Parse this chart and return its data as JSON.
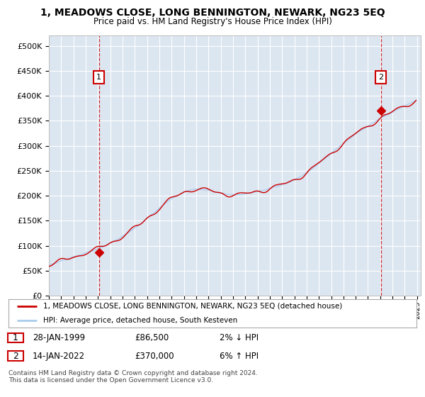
{
  "title": "1, MEADOWS CLOSE, LONG BENNINGTON, NEWARK, NG23 5EQ",
  "subtitle": "Price paid vs. HM Land Registry's House Price Index (HPI)",
  "ylim": [
    0,
    520000
  ],
  "yticks": [
    0,
    50000,
    100000,
    150000,
    200000,
    250000,
    300000,
    350000,
    400000,
    450000,
    500000
  ],
  "ytick_labels": [
    "£0",
    "£50K",
    "£100K",
    "£150K",
    "£200K",
    "£250K",
    "£300K",
    "£350K",
    "£400K",
    "£450K",
    "£500K"
  ],
  "bg_color": "#dce6f1",
  "grid_color": "#ffffff",
  "line_color_hpi": "#aaccee",
  "line_color_price": "#cc0000",
  "marker_color": "#cc0000",
  "sale1_year": 1999.08,
  "sale1_price": 86500,
  "sale2_year": 2022.04,
  "sale2_price": 370000,
  "legend_entry1": "1, MEADOWS CLOSE, LONG BENNINGTON, NEWARK, NG23 5EQ (detached house)",
  "legend_entry2": "HPI: Average price, detached house, South Kesteven",
  "footer_line1": "Contains HM Land Registry data © Crown copyright and database right 2024.",
  "footer_line2": "This data is licensed under the Open Government Licence v3.0.",
  "note1_date": "28-JAN-1999",
  "note1_price": "£86,500",
  "note1_hpi": "2% ↓ HPI",
  "note2_date": "14-JAN-2022",
  "note2_price": "£370,000",
  "note2_hpi": "6% ↑ HPI"
}
